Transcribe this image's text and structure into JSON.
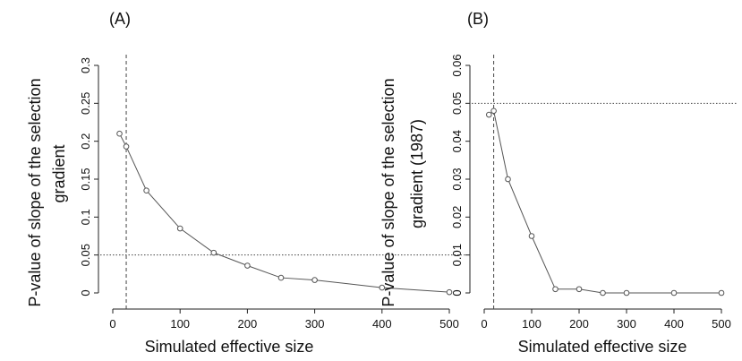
{
  "chart_data": [
    {
      "type": "line",
      "panel_label": "(A)",
      "xlabel": "Simulated effective size",
      "ylabel_line1": "P-value of slope of the selection",
      "ylabel_line2": "gradient",
      "x_ticks": [
        0,
        100,
        200,
        300,
        400,
        500
      ],
      "y_ticks": [
        "0",
        "0.05",
        "0.1",
        "0.15",
        "0.2",
        "0.25",
        "0.3"
      ],
      "xlim": [
        0,
        500
      ],
      "ylim": [
        0,
        0.3
      ],
      "grid": false,
      "series": [
        {
          "x": [
            10,
            20,
            50,
            100,
            150,
            200,
            250,
            300,
            400,
            500
          ],
          "y": [
            0.21,
            0.193,
            0.135,
            0.085,
            0.053,
            0.036,
            0.02,
            0.017,
            0.007,
            0.001
          ]
        }
      ],
      "reference_lines": {
        "vertical_dashed_x": 20,
        "horizontal_dotted_y": 0.05
      }
    },
    {
      "type": "line",
      "panel_label": "(B)",
      "xlabel": "Simulated effective size",
      "ylabel_line1": "P-value of slope of the selection",
      "ylabel_line2": "gradient (1987)",
      "x_ticks": [
        0,
        100,
        200,
        300,
        400,
        500
      ],
      "y_ticks": [
        "0",
        "0.01",
        "0.02",
        "0.03",
        "0.04",
        "0.05",
        "0.06"
      ],
      "xlim": [
        0,
        500
      ],
      "ylim": [
        0,
        0.06
      ],
      "grid": false,
      "series": [
        {
          "x": [
            10,
            20,
            50,
            100,
            150,
            200,
            250,
            300,
            400,
            500
          ],
          "y": [
            0.047,
            0.048,
            0.03,
            0.015,
            0.001,
            0.001,
            0.0,
            0.0,
            0.0,
            0.0
          ]
        }
      ],
      "reference_lines": {
        "vertical_dashed_x": 20,
        "horizontal_dotted_y": 0.05
      }
    }
  ]
}
